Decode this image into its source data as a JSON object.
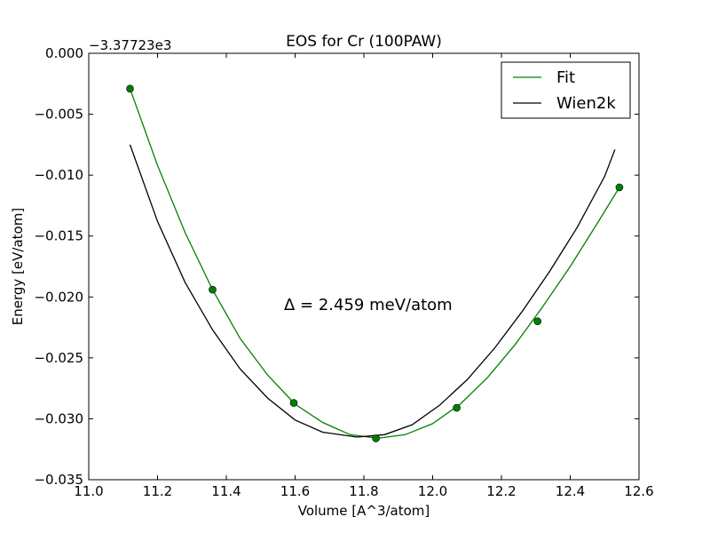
{
  "chart_data": {
    "type": "line",
    "title": "EOS for Cr (100PAW)",
    "xlabel": "Volume [A^3/atom]",
    "ylabel": "Energy [eV/atom]",
    "offset_label": "−3.37723e3",
    "xlim": [
      11.0,
      12.6
    ],
    "ylim": [
      -0.035,
      0.0
    ],
    "xticks": [
      11.0,
      11.2,
      11.4,
      11.6,
      11.8,
      12.0,
      12.2,
      12.4,
      12.6
    ],
    "xtick_labels": [
      "11.0",
      "11.2",
      "11.4",
      "11.6",
      "11.8",
      "12.0",
      "12.2",
      "12.4",
      "12.6"
    ],
    "yticks": [
      0.0,
      -0.005,
      -0.01,
      -0.015,
      -0.02,
      -0.025,
      -0.03,
      -0.035
    ],
    "ytick_labels": [
      "0.000",
      "−0.005",
      "−0.010",
      "−0.015",
      "−0.020",
      "−0.025",
      "−0.030",
      "−0.035"
    ],
    "grid": false,
    "legend_position": "top-right",
    "annotation": "Δ = 2.459 meV/atom",
    "points": {
      "x": [
        11.12,
        11.36,
        11.596,
        11.835,
        12.07,
        12.305,
        12.543
      ],
      "y": [
        -0.0029,
        -0.0194,
        -0.0287,
        -0.0316,
        -0.0291,
        -0.022,
        -0.011
      ],
      "color": "#007f00"
    },
    "series": [
      {
        "name": "Fit",
        "color": "#008000",
        "x": [
          11.12,
          11.2,
          11.28,
          11.36,
          11.44,
          11.52,
          11.6,
          11.68,
          11.76,
          11.84,
          11.92,
          12.0,
          12.08,
          12.16,
          12.24,
          12.32,
          12.4,
          12.48,
          12.543
        ],
        "y": [
          -0.0029,
          -0.0092,
          -0.0147,
          -0.0194,
          -0.0234,
          -0.0264,
          -0.0288,
          -0.0303,
          -0.0313,
          -0.0316,
          -0.0313,
          -0.0304,
          -0.0288,
          -0.0266,
          -0.0239,
          -0.0208,
          -0.0175,
          -0.0139,
          -0.011
        ]
      },
      {
        "name": "Wien2k",
        "color": "#000000",
        "x": [
          11.12,
          11.2,
          11.28,
          11.36,
          11.44,
          11.52,
          11.6,
          11.68,
          11.78,
          11.86,
          11.94,
          12.02,
          12.1,
          12.18,
          12.26,
          12.34,
          12.42,
          12.5,
          12.53
        ],
        "y": [
          -0.0075,
          -0.0138,
          -0.0188,
          -0.0227,
          -0.0259,
          -0.0283,
          -0.0301,
          -0.0311,
          -0.0315,
          -0.0313,
          -0.0305,
          -0.0289,
          -0.0268,
          -0.0242,
          -0.0212,
          -0.0179,
          -0.0143,
          -0.0101,
          -0.0079
        ]
      }
    ]
  }
}
